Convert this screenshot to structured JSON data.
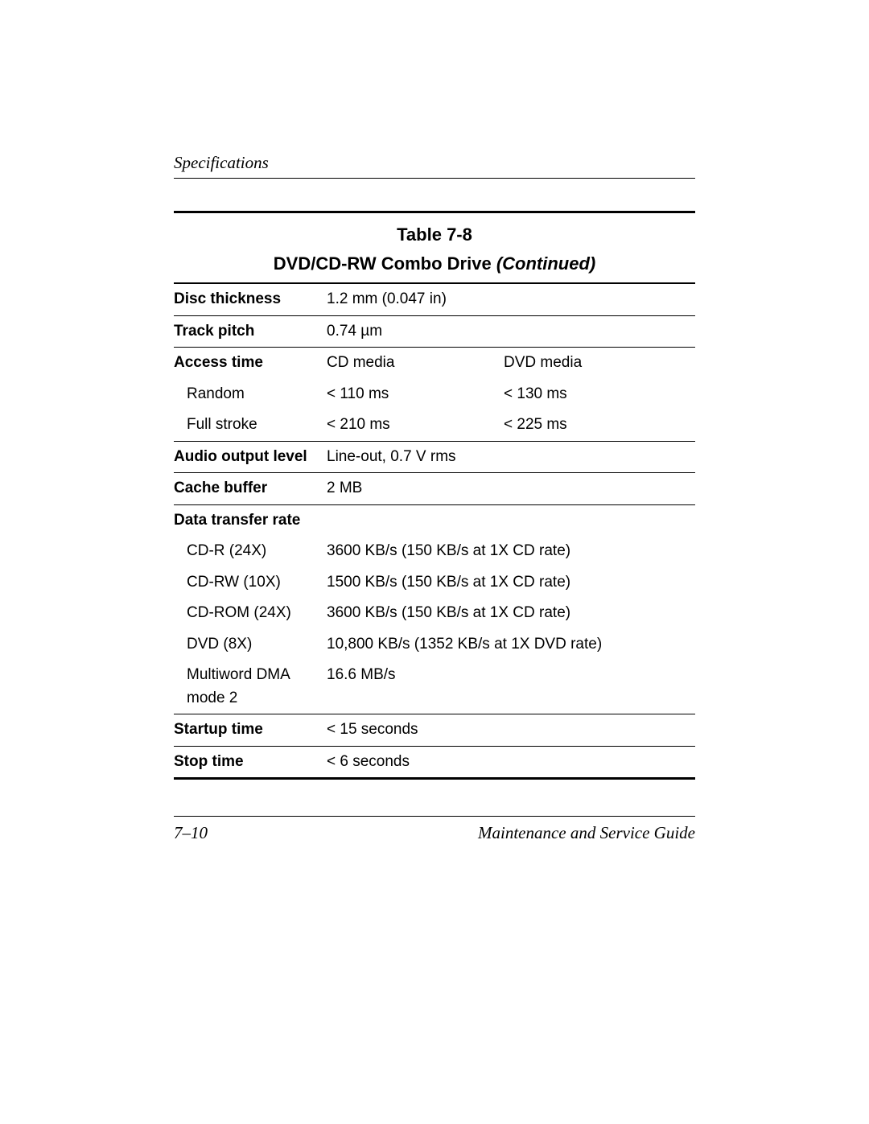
{
  "header": {
    "section": "Specifications"
  },
  "table": {
    "number": "Table 7-8",
    "title_main": "DVD/CD-RW Combo Drive ",
    "title_cont": "(Continued)",
    "rows": {
      "disc_thickness": {
        "label": "Disc thickness",
        "value": "1.2 mm (0.047 in)"
      },
      "track_pitch": {
        "label": "Track pitch",
        "value": "0.74 µm"
      },
      "access_time": {
        "label": "Access time",
        "col2_header": "CD media",
        "col3_header": "DVD media",
        "random": {
          "label": "Random",
          "cd": "< 110 ms",
          "dvd": "< 130 ms"
        },
        "full_stroke": {
          "label": "Full stroke",
          "cd": "< 210 ms",
          "dvd": "< 225 ms"
        }
      },
      "audio_output": {
        "label": "Audio output level",
        "value": "Line-out, 0.7 V rms"
      },
      "cache_buffer": {
        "label": "Cache buffer",
        "value": "2 MB"
      },
      "data_transfer": {
        "label": "Data transfer rate",
        "cdr": {
          "label": "CD-R (24X)",
          "value": "3600 KB/s (150 KB/s at 1X CD rate)"
        },
        "cdrw": {
          "label": "CD-RW (10X)",
          "value": "1500 KB/s (150 KB/s at 1X CD rate)"
        },
        "cdrom": {
          "label": "CD-ROM (24X)",
          "value": "3600 KB/s (150 KB/s at 1X CD rate)"
        },
        "dvd": {
          "label": "DVD (8X)",
          "value": "10,800 KB/s (1352 KB/s at 1X DVD rate)"
        },
        "dma": {
          "label": "Multiword DMA mode 2",
          "value": "16.6 MB/s"
        }
      },
      "startup_time": {
        "label": "Startup time",
        "value": "< 15 seconds"
      },
      "stop_time": {
        "label": "Stop time",
        "value": "< 6 seconds"
      }
    }
  },
  "footer": {
    "page_num": "7–10",
    "guide": "Maintenance and Service Guide"
  }
}
